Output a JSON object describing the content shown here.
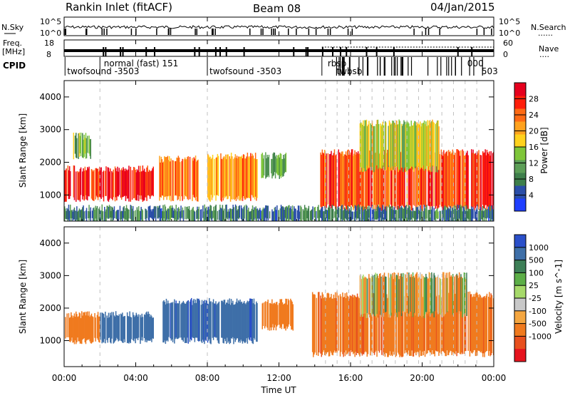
{
  "header": {
    "station": "Rankin Inlet (fitACF)",
    "beam": "Beam 08",
    "date": "04/Jan/2015"
  },
  "side_labels": {
    "nsky": "N.Sky",
    "nsearch": "N.Search",
    "freq_line1": "Freq.",
    "freq_line2": "[MHz]",
    "nave": "Nave",
    "cpid": "CPID",
    "dots": "......",
    "dots_short": "...."
  },
  "noise_axis": {
    "left_hi": "10^5",
    "left_lo": "10^0",
    "right_hi": "10^5",
    "right_lo": "10^0"
  },
  "freq_axis": {
    "left_hi": "18",
    "left_lo": "8",
    "right_hi": "60",
    "right_lo": "0"
  },
  "cpid_labels": [
    {
      "text": "normal (fast) 151",
      "row": "top",
      "t": 2.1
    },
    {
      "text": "twofsound -3503",
      "row": "bottom",
      "t": 0.05
    },
    {
      "text": "twofsound -3503",
      "row": "bottom",
      "t": 8.0
    },
    {
      "text": "rbsp",
      "row": "top",
      "t": 14.6
    },
    {
      "text": "twbsb",
      "row": "bottom",
      "t": 15.1
    },
    {
      "text": "000",
      "row": "top",
      "t": 22.4
    },
    {
      "text": "503",
      "row": "bottom",
      "t": 23.2
    }
  ],
  "time_axis": {
    "label": "Time UT",
    "ticks": [
      "00:00",
      "04:00",
      "08:00",
      "12:00",
      "16:00",
      "20:00",
      "00:00"
    ]
  },
  "colors": {
    "power_scale": [
      "#1f3fff",
      "#2a4ea8",
      "#3e7f4b",
      "#5c9e57",
      "#7fc63a",
      "#ffd21e",
      "#ffa21e",
      "#ff6a14",
      "#ff1e0a",
      "#e6001e"
    ],
    "velocity_scale": [
      "#2a4fc9",
      "#3e6fa8",
      "#3d7f57",
      "#5cae47",
      "#a6d96a",
      "#c8c8c8",
      "#f4a640",
      "#f07a1e",
      "#e8501e",
      "#e6141e"
    ]
  },
  "chart_data": [
    {
      "type": "heatmap",
      "title": "Power",
      "xlabel": "Time UT",
      "ylabel": "Slant Range [km]",
      "xlim": [
        0,
        24
      ],
      "ylim": [
        200,
        4500
      ],
      "y_ticks": [
        1000,
        2000,
        3000,
        4000
      ],
      "colorbar": {
        "label": "Power [dB]",
        "ticks": [
          4,
          8,
          12,
          16,
          20,
          24,
          28
        ],
        "range": [
          0,
          32
        ]
      },
      "regions": [
        {
          "t0": 0.0,
          "t1": 5.0,
          "r0": 900,
          "r1": 1800,
          "value": 28
        },
        {
          "t0": 0.5,
          "t1": 1.5,
          "r0": 2200,
          "r1": 2800,
          "value": 12
        },
        {
          "t0": 5.3,
          "t1": 7.5,
          "r0": 900,
          "r1": 2100,
          "value": 24
        },
        {
          "t0": 8.0,
          "t1": 10.8,
          "r0": 900,
          "r1": 2200,
          "value": 22
        },
        {
          "t0": 11.0,
          "t1": 12.5,
          "r0": 1600,
          "r1": 2200,
          "value": 12
        },
        {
          "t0": 14.3,
          "t1": 24.0,
          "r0": 600,
          "r1": 2300,
          "value": 26
        },
        {
          "t0": 16.5,
          "t1": 21.0,
          "r0": 1800,
          "r1": 3200,
          "value": 16
        },
        {
          "t0": 0.0,
          "t1": 24.0,
          "r0": 200,
          "r1": 600,
          "value": 8
        }
      ]
    },
    {
      "type": "heatmap",
      "title": "Velocity",
      "xlabel": "Time UT",
      "ylabel": "Slant Range [km]",
      "xlim": [
        0,
        24
      ],
      "ylim": [
        200,
        4500
      ],
      "y_ticks": [
        1000,
        2000,
        3000,
        4000
      ],
      "colorbar": {
        "label": "Velocity [m s^-1]",
        "ticks": [
          1000,
          500,
          100,
          25,
          -25,
          -100,
          -500,
          -1000
        ]
      },
      "regions": [
        {
          "t0": 0.0,
          "t1": 2.0,
          "r0": 1000,
          "r1": 1800,
          "value": -300
        },
        {
          "t0": 2.0,
          "t1": 5.0,
          "r0": 1000,
          "r1": 1800,
          "value": 300
        },
        {
          "t0": 5.5,
          "t1": 10.8,
          "r0": 1000,
          "r1": 2200,
          "value": 400
        },
        {
          "t0": 11.0,
          "t1": 12.8,
          "r0": 1400,
          "r1": 2200,
          "value": -300
        },
        {
          "t0": 13.8,
          "t1": 24.0,
          "r0": 600,
          "r1": 2400,
          "value": -400
        },
        {
          "t0": 16.5,
          "t1": 22.5,
          "r0": 1800,
          "r1": 3000,
          "value": -50
        }
      ]
    }
  ]
}
